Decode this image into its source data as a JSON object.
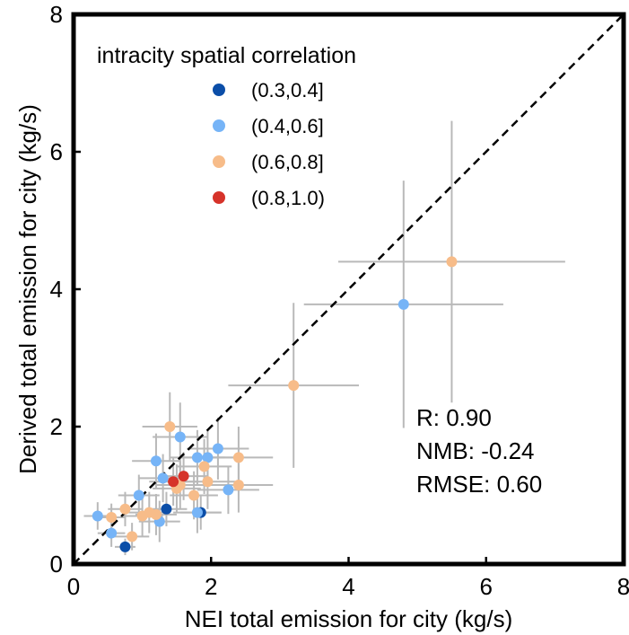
{
  "chart_data": {
    "type": "scatter",
    "xlabel": "NEI total emission for city (kg/s)",
    "ylabel": "Derived total emission for city (kg/s)",
    "xlim": [
      0,
      8
    ],
    "ylim": [
      0,
      8
    ],
    "xticks": [
      "0",
      "2",
      "4",
      "6",
      "8"
    ],
    "yticks": [
      "0",
      "2",
      "4",
      "6",
      "8"
    ],
    "grid": false,
    "reference_line": "y = x (dashed)",
    "legend": {
      "title": "intracity spatial correlation",
      "placement": "top-left",
      "entries": [
        {
          "label": "(0.3,0.4]",
          "color": "#0b4ea8"
        },
        {
          "label": "(0.4,0.6]",
          "color": "#76b4f7"
        },
        {
          "label": "(0.6,0.8]",
          "color": "#f7bc89"
        },
        {
          "label": "(0.8,1.0)",
          "color": "#d6332a"
        }
      ]
    },
    "stats": [
      "R: 0.90",
      "NMB: -0.24",
      "RMSE: 0.60"
    ],
    "errorbar_color": "#b9b9b9",
    "points": [
      {
        "x": 0.75,
        "y": 0.25,
        "xerr": 0.15,
        "yerr": 0.12,
        "group": 0
      },
      {
        "x": 1.85,
        "y": 0.75,
        "xerr": 0.3,
        "yerr": 0.25,
        "group": 0
      },
      {
        "x": 1.35,
        "y": 0.8,
        "xerr": 0.3,
        "yerr": 0.25,
        "group": 0
      },
      {
        "x": 0.35,
        "y": 0.7,
        "xerr": 0.2,
        "yerr": 0.2,
        "group": 1
      },
      {
        "x": 0.55,
        "y": 0.45,
        "xerr": 0.2,
        "yerr": 0.2,
        "group": 1
      },
      {
        "x": 0.95,
        "y": 1.0,
        "xerr": 0.3,
        "yerr": 0.3,
        "group": 1
      },
      {
        "x": 1.2,
        "y": 1.5,
        "xerr": 0.35,
        "yerr": 0.4,
        "group": 1
      },
      {
        "x": 1.25,
        "y": 0.62,
        "xerr": 0.3,
        "yerr": 0.3,
        "group": 1
      },
      {
        "x": 1.55,
        "y": 1.85,
        "xerr": 0.4,
        "yerr": 0.5,
        "group": 1
      },
      {
        "x": 1.8,
        "y": 1.55,
        "xerr": 0.4,
        "yerr": 0.4,
        "group": 1
      },
      {
        "x": 1.95,
        "y": 1.55,
        "xerr": 0.4,
        "yerr": 0.4,
        "group": 1
      },
      {
        "x": 2.1,
        "y": 1.68,
        "xerr": 0.45,
        "yerr": 0.45,
        "group": 1
      },
      {
        "x": 1.8,
        "y": 0.75,
        "xerr": 0.35,
        "yerr": 0.3,
        "group": 1
      },
      {
        "x": 2.25,
        "y": 1.08,
        "xerr": 0.45,
        "yerr": 0.35,
        "group": 1
      },
      {
        "x": 1.3,
        "y": 1.25,
        "xerr": 0.35,
        "yerr": 0.35,
        "group": 1
      },
      {
        "x": 4.8,
        "y": 3.78,
        "xerr": 1.45,
        "yerr": 1.8,
        "group": 1
      },
      {
        "x": 0.55,
        "y": 0.68,
        "xerr": 0.2,
        "yerr": 0.2,
        "group": 2
      },
      {
        "x": 0.75,
        "y": 0.8,
        "xerr": 0.25,
        "yerr": 0.25,
        "group": 2
      },
      {
        "x": 0.85,
        "y": 0.4,
        "xerr": 0.25,
        "yerr": 0.2,
        "group": 2
      },
      {
        "x": 1.0,
        "y": 0.7,
        "xerr": 0.3,
        "yerr": 0.3,
        "group": 2
      },
      {
        "x": 1.1,
        "y": 0.75,
        "xerr": 0.3,
        "yerr": 0.3,
        "group": 2
      },
      {
        "x": 1.2,
        "y": 0.72,
        "xerr": 0.3,
        "yerr": 0.3,
        "group": 2
      },
      {
        "x": 1.4,
        "y": 2.0,
        "xerr": 0.4,
        "yerr": 0.5,
        "group": 2
      },
      {
        "x": 1.5,
        "y": 1.1,
        "xerr": 0.35,
        "yerr": 0.35,
        "group": 2
      },
      {
        "x": 1.55,
        "y": 1.15,
        "xerr": 0.35,
        "yerr": 0.35,
        "group": 2
      },
      {
        "x": 1.75,
        "y": 1.0,
        "xerr": 0.35,
        "yerr": 0.35,
        "group": 2
      },
      {
        "x": 1.9,
        "y": 1.42,
        "xerr": 0.4,
        "yerr": 0.4,
        "group": 2
      },
      {
        "x": 1.95,
        "y": 1.2,
        "xerr": 0.4,
        "yerr": 0.4,
        "group": 2
      },
      {
        "x": 2.4,
        "y": 1.55,
        "xerr": 0.5,
        "yerr": 0.45,
        "group": 2
      },
      {
        "x": 2.4,
        "y": 1.15,
        "xerr": 0.5,
        "yerr": 0.4,
        "group": 2
      },
      {
        "x": 3.2,
        "y": 2.6,
        "xerr": 0.95,
        "yerr": 1.2,
        "group": 2
      },
      {
        "x": 5.5,
        "y": 4.4,
        "xerr": 1.65,
        "yerr": 2.05,
        "group": 2
      },
      {
        "x": 1.6,
        "y": 1.28,
        "xerr": 0.35,
        "yerr": 0.35,
        "group": 3
      },
      {
        "x": 1.45,
        "y": 1.2,
        "xerr": 0.35,
        "yerr": 0.35,
        "group": 3
      }
    ]
  }
}
